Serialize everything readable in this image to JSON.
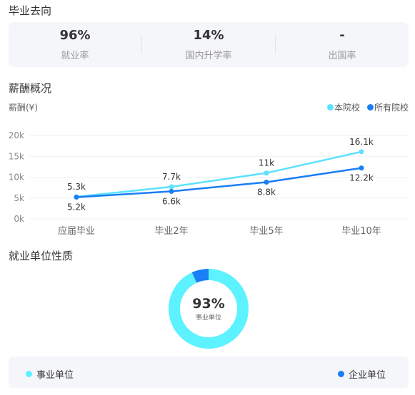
{
  "employment": {
    "title": "毕业去向",
    "stats": [
      {
        "value": "96%",
        "label": "就业率"
      },
      {
        "value": "14%",
        "label": "国内升学率"
      },
      {
        "value": "-",
        "label": "出国率"
      }
    ]
  },
  "salary": {
    "title": "薪酬概况",
    "unit_label": "薪酬(¥)",
    "legend": {
      "this_school": "本院校",
      "all_schools": "所有院校"
    },
    "colors": {
      "this_school": "#5ce1ff",
      "all_schools": "#1a7ef5"
    }
  },
  "chart_data": {
    "type": "line",
    "categories": [
      "应届毕业",
      "毕业2年",
      "毕业5年",
      "毕业10年"
    ],
    "series": [
      {
        "name": "本院校",
        "values": [
          5.3,
          7.7,
          11,
          16.1
        ],
        "labels": [
          "5.3k",
          "7.7k",
          "11k",
          "16.1k"
        ]
      },
      {
        "name": "所有院校",
        "values": [
          5.2,
          6.6,
          8.8,
          12.2
        ],
        "labels": [
          "5.2k",
          "6.6k",
          "8.8k",
          "12.2k"
        ]
      }
    ],
    "yticks": [
      "0k",
      "5k",
      "10k",
      "15k",
      "20k"
    ],
    "ylim": [
      0,
      20
    ],
    "title": "",
    "xlabel": "",
    "ylabel": "薪酬(¥)",
    "grid": true,
    "legend_position": "top-right"
  },
  "nature": {
    "title": "就业单位性质",
    "center_value": "93%",
    "center_label": "事业单位",
    "segments": [
      {
        "name": "事业单位",
        "percent": 93,
        "color": "#5cf2ff"
      },
      {
        "name": "企业单位",
        "percent": 7,
        "color": "#1a7ef5"
      }
    ]
  }
}
